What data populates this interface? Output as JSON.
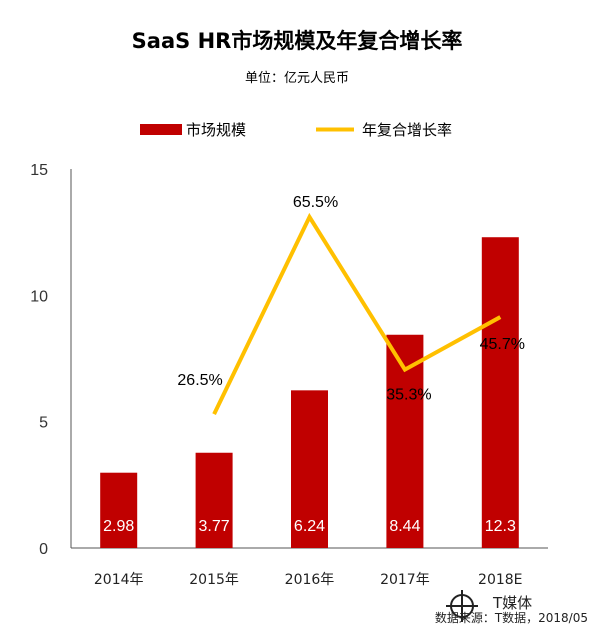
{
  "chart_data": {
    "type": "bar",
    "title": "SaaS HR市场规模及年复合增长率",
    "subtitle": "单位：亿元人民币",
    "categories": [
      "2014年",
      "2015年",
      "2016年",
      "2017年",
      "2018E"
    ],
    "series": [
      {
        "name": "市场规模",
        "type": "bar",
        "values": [
          2.98,
          3.77,
          6.24,
          8.44,
          12.3
        ],
        "labels": [
          "2.98",
          "3.77",
          "6.24",
          "8.44",
          "12.3"
        ],
        "color": "#c00000"
      },
      {
        "name": "年复合增长率",
        "type": "line",
        "values": [
          null,
          26.5,
          65.5,
          35.3,
          45.7
        ],
        "labels": [
          "",
          "26.5%",
          "65.5%",
          "35.3%",
          "45.7%"
        ],
        "color": "#ffc000"
      }
    ],
    "ylim": [
      0,
      15
    ],
    "yticks": [
      "0",
      "5",
      "10",
      "15"
    ],
    "xlabel": "",
    "ylabel": "",
    "legend": "top-center",
    "grid": false
  },
  "footer": {
    "source": "数据来源：T数据，2018/05",
    "logo": "T媒体"
  }
}
